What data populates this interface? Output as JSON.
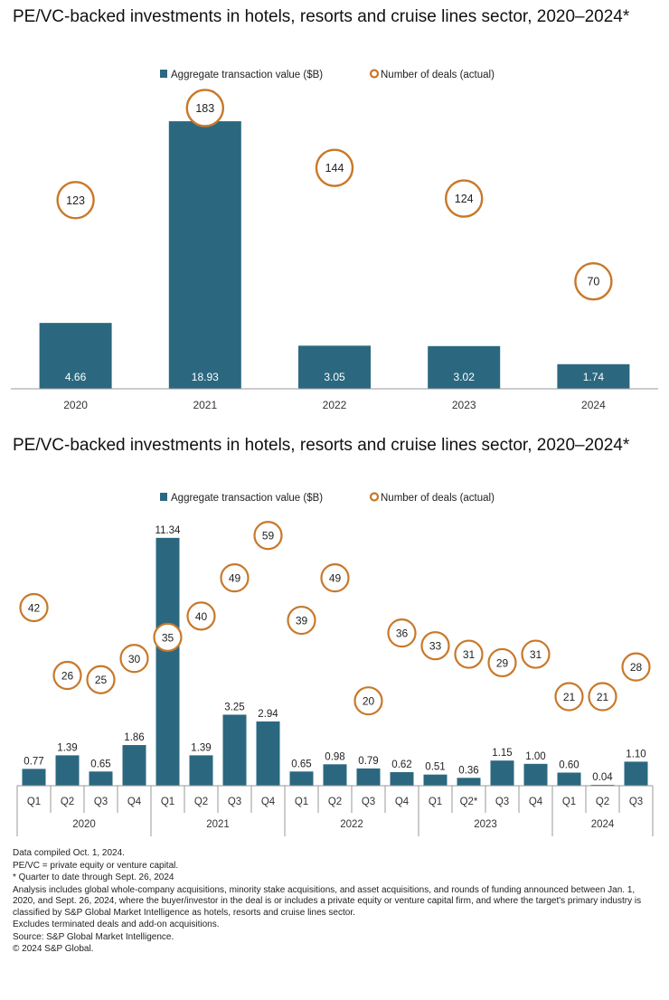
{
  "charts": [
    {
      "title": "PE/VC-backed investments in hotels, resorts and cruise lines sector, 2020–2024*",
      "legend": {
        "bar_label": "Aggregate transaction value ($B)",
        "circle_label": "Number of deals (actual)"
      }
    },
    {
      "title": "PE/VC-backed investments in hotels, resorts and cruise lines sector, 2020–2024*",
      "legend": {
        "bar_label": "Aggregate transaction value ($B)",
        "circle_label": "Number of deals (actual)"
      }
    }
  ],
  "footnotes": [
    "Data compiled Oct. 1, 2024.",
    "PE/VC = private equity or venture capital.",
    "* Quarter to date through Sept. 26, 2024",
    "Analysis includes global whole-company acquisitions, minority stake acquisitions, and asset acquisitions, and rounds of funding announced between Jan. 1, 2020, and Sept. 26, 2024, where the buyer/investor in the deal is or includes a private equity or venture capital firm, and where the target's primary industry is classified by S&P Global Market Intelligence as hotels, resorts and cruise lines sector.",
    "Excludes terminated deals and add-on acquisitions.",
    "Source: S&P Global Market Intelligence.",
    "© 2024 S&P Global."
  ],
  "colors": {
    "bar": "#2b6880",
    "circle": "#c8782a",
    "axis": "#9a9a9a",
    "bar_text": "#ffffff"
  },
  "chart_data": [
    {
      "type": "bar",
      "title": "PE/VC-backed investments in hotels, resorts and cruise lines sector, 2020–2024*",
      "categories": [
        "2020",
        "2021",
        "2022",
        "2023",
        "2024"
      ],
      "series": [
        {
          "name": "Aggregate transaction value ($B)",
          "kind": "bar",
          "values": [
            4.66,
            18.93,
            3.05,
            3.02,
            1.74
          ],
          "value_labels": [
            "4.66",
            "18.93",
            "3.05",
            "3.02",
            "1.74"
          ]
        },
        {
          "name": "Number of deals (actual)",
          "kind": "circle-marker",
          "values": [
            123,
            183,
            144,
            124,
            70
          ],
          "value_labels": [
            "123",
            "183",
            "144",
            "124",
            "70"
          ]
        }
      ],
      "bar_ylim": [
        0,
        19
      ],
      "deals_ylim": [
        0,
        188
      ],
      "legend_position": "top-center",
      "bar_labels_inside": true
    },
    {
      "type": "bar",
      "title": "PE/VC-backed investments in hotels, resorts and cruise lines sector, 2020–2024*",
      "categories": [
        "Q1",
        "Q2",
        "Q3",
        "Q4",
        "Q1",
        "Q2",
        "Q3",
        "Q4",
        "Q1",
        "Q2",
        "Q3",
        "Q4",
        "Q1",
        "Q2*",
        "Q3",
        "Q4",
        "Q1",
        "Q2",
        "Q3"
      ],
      "groups": [
        {
          "label": "2020",
          "count": 4
        },
        {
          "label": "2021",
          "count": 4
        },
        {
          "label": "2022",
          "count": 4
        },
        {
          "label": "2023",
          "count": 4
        },
        {
          "label": "2024",
          "count": 3
        }
      ],
      "series": [
        {
          "name": "Aggregate transaction value ($B)",
          "kind": "bar",
          "values": [
            0.77,
            1.39,
            0.65,
            1.86,
            11.34,
            1.39,
            3.25,
            2.94,
            0.65,
            0.98,
            0.79,
            0.62,
            0.51,
            0.36,
            1.15,
            1.0,
            0.6,
            0.04,
            1.1
          ],
          "value_labels": [
            "0.77",
            "1.39",
            "0.65",
            "1.86",
            "11.34",
            "1.39",
            "3.25",
            "2.94",
            "0.65",
            "0.98",
            "0.79",
            "0.62",
            "0.51",
            "0.36",
            "1.15",
            "1.00",
            "0.60",
            "0.04",
            "1.10"
          ]
        },
        {
          "name": "Number of deals (actual)",
          "kind": "circle-marker",
          "values": [
            42,
            26,
            25,
            30,
            35,
            40,
            49,
            59,
            39,
            49,
            20,
            36,
            33,
            31,
            29,
            31,
            21,
            21,
            28
          ],
          "value_labels": [
            "42",
            "26",
            "25",
            "30",
            "35",
            "40",
            "49",
            "59",
            "39",
            "49",
            "20",
            "36",
            "33",
            "31",
            "29",
            "31",
            "21",
            "21",
            "28"
          ]
        }
      ],
      "bar_ylim": [
        0,
        11.5
      ],
      "deals_ylim": [
        0,
        68
      ],
      "legend_position": "top-center",
      "bar_labels_inside": false
    }
  ]
}
